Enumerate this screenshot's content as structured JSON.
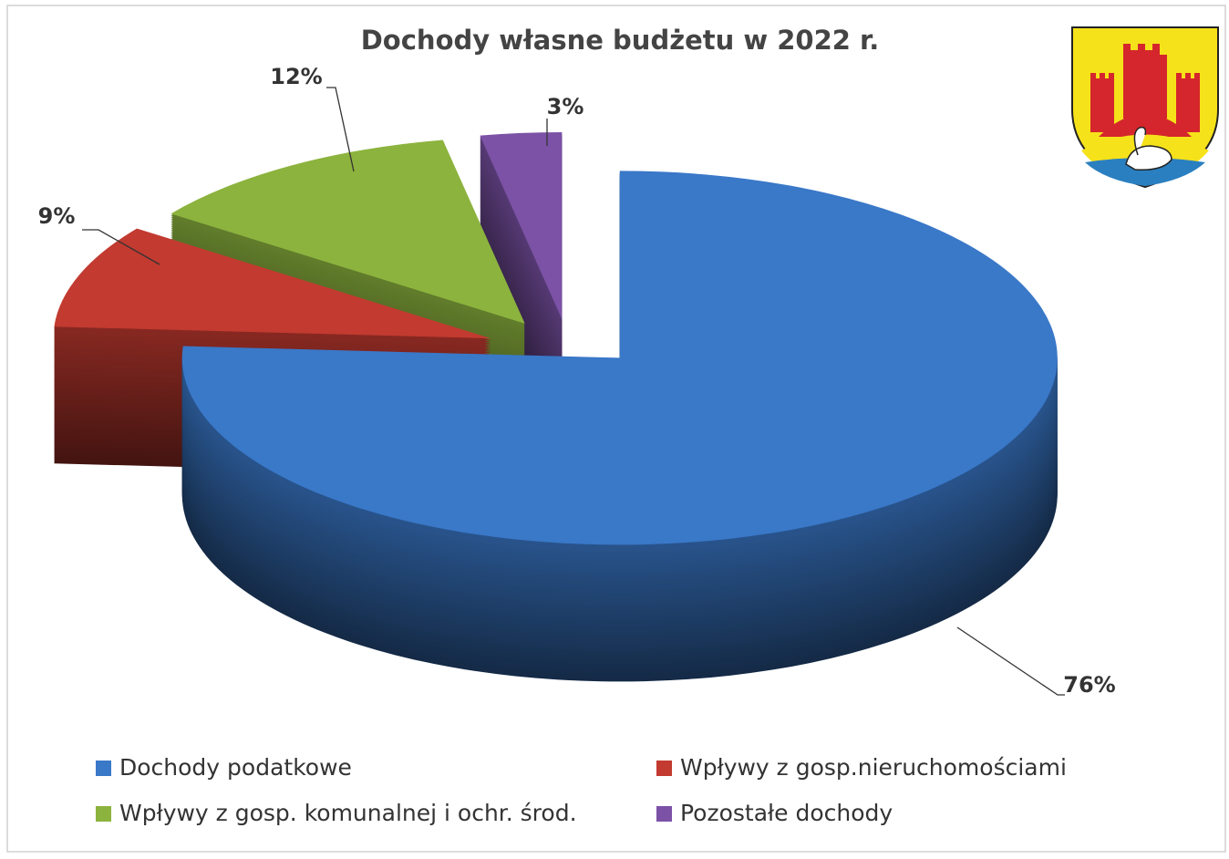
{
  "chart_data": {
    "type": "pie3d",
    "title": "Dochody własne budżetu w 2022 r.",
    "categories": [
      "Dochody podatkowe",
      "Wpływy z gosp.nieruchomościami",
      "Wpływy z gosp. komunalnej i ochr. środ.",
      "Pozostałe dochody"
    ],
    "values": [
      76,
      9,
      12,
      3
    ],
    "value_labels": [
      "76%",
      "9%",
      "12%",
      "3%"
    ],
    "colors": [
      "#3a78c8",
      "#c23a30",
      "#8cb33e",
      "#7b52a6"
    ],
    "legend": "bottom"
  }
}
